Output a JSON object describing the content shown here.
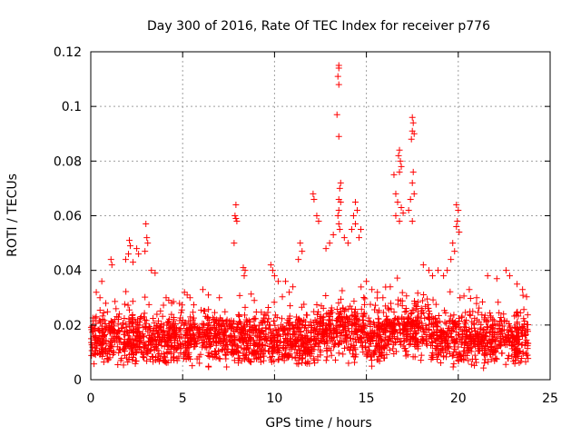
{
  "chart_data": {
    "type": "scatter",
    "title": "Day 300 of 2016, Rate Of TEC Index for receiver p776",
    "xlabel": "GPS time / hours",
    "ylabel": "ROTI / TECUs",
    "xlim": [
      0,
      25
    ],
    "ylim": [
      0,
      0.12
    ],
    "xticks": [
      0,
      5,
      10,
      15,
      20,
      25
    ],
    "yticks": [
      0,
      0.02,
      0.04,
      0.06,
      0.08,
      0.1,
      0.12
    ],
    "xtick_labels": [
      "0",
      "5",
      "10",
      "15",
      "20",
      "25"
    ],
    "ytick_labels": [
      "0",
      "0.02",
      "0.04",
      "0.06",
      "0.08",
      "0.1",
      "0.12"
    ],
    "grid": true,
    "marker": "+",
    "color": "#ff0000",
    "series": [
      {
        "name": "ROTI",
        "points": [
          [
            13.5,
            0.115
          ],
          [
            13.5,
            0.114
          ],
          [
            13.45,
            0.111
          ],
          [
            13.5,
            0.108
          ],
          [
            13.4,
            0.097
          ],
          [
            13.5,
            0.089
          ],
          [
            17.5,
            0.096
          ],
          [
            17.55,
            0.094
          ],
          [
            17.5,
            0.091
          ],
          [
            17.6,
            0.09
          ],
          [
            17.45,
            0.088
          ],
          [
            16.8,
            0.084
          ],
          [
            16.75,
            0.082
          ],
          [
            16.85,
            0.08
          ],
          [
            16.9,
            0.078
          ],
          [
            16.8,
            0.076
          ],
          [
            16.5,
            0.075
          ],
          [
            17.55,
            0.076
          ],
          [
            17.5,
            0.072
          ],
          [
            17.6,
            0.068
          ],
          [
            17.4,
            0.066
          ],
          [
            16.6,
            0.068
          ],
          [
            16.7,
            0.065
          ],
          [
            16.9,
            0.063
          ],
          [
            17.0,
            0.061
          ],
          [
            16.6,
            0.06
          ],
          [
            16.8,
            0.058
          ],
          [
            17.3,
            0.062
          ],
          [
            17.5,
            0.058
          ],
          [
            13.6,
            0.072
          ],
          [
            13.55,
            0.07
          ],
          [
            13.5,
            0.066
          ],
          [
            13.6,
            0.065
          ],
          [
            13.5,
            0.062
          ],
          [
            13.45,
            0.06
          ],
          [
            13.5,
            0.057
          ],
          [
            13.55,
            0.055
          ],
          [
            14.4,
            0.065
          ],
          [
            14.5,
            0.062
          ],
          [
            14.3,
            0.06
          ],
          [
            14.4,
            0.057
          ],
          [
            14.2,
            0.055
          ],
          [
            14.7,
            0.055
          ],
          [
            14.6,
            0.052
          ],
          [
            13.2,
            0.053
          ],
          [
            13.0,
            0.05
          ],
          [
            12.8,
            0.048
          ],
          [
            13.8,
            0.052
          ],
          [
            14.0,
            0.05
          ],
          [
            12.1,
            0.068
          ],
          [
            12.15,
            0.066
          ],
          [
            12.3,
            0.06
          ],
          [
            12.4,
            0.058
          ],
          [
            11.4,
            0.05
          ],
          [
            11.5,
            0.047
          ],
          [
            11.3,
            0.044
          ],
          [
            7.9,
            0.064
          ],
          [
            7.85,
            0.06
          ],
          [
            7.9,
            0.059
          ],
          [
            7.95,
            0.058
          ],
          [
            7.8,
            0.05
          ],
          [
            8.3,
            0.041
          ],
          [
            8.4,
            0.04
          ],
          [
            8.35,
            0.038
          ],
          [
            19.9,
            0.064
          ],
          [
            20.0,
            0.062
          ],
          [
            19.95,
            0.058
          ],
          [
            19.9,
            0.056
          ],
          [
            20.05,
            0.054
          ],
          [
            19.7,
            0.05
          ],
          [
            19.8,
            0.047
          ],
          [
            19.6,
            0.044
          ],
          [
            3.0,
            0.057
          ],
          [
            3.05,
            0.052
          ],
          [
            3.1,
            0.05
          ],
          [
            2.95,
            0.047
          ],
          [
            2.1,
            0.051
          ],
          [
            2.15,
            0.049
          ],
          [
            2.05,
            0.046
          ],
          [
            1.9,
            0.044
          ],
          [
            2.5,
            0.048
          ],
          [
            2.6,
            0.046
          ],
          [
            2.3,
            0.043
          ],
          [
            3.3,
            0.04
          ],
          [
            3.5,
            0.039
          ],
          [
            1.1,
            0.044
          ],
          [
            1.15,
            0.042
          ],
          [
            0.6,
            0.036
          ],
          [
            0.3,
            0.032
          ],
          [
            0.5,
            0.03
          ],
          [
            9.8,
            0.042
          ],
          [
            9.9,
            0.04
          ],
          [
            10.0,
            0.038
          ],
          [
            10.2,
            0.036
          ],
          [
            10.6,
            0.036
          ],
          [
            11.0,
            0.034
          ],
          [
            10.8,
            0.032
          ],
          [
            18.1,
            0.042
          ],
          [
            18.4,
            0.04
          ],
          [
            18.6,
            0.038
          ],
          [
            18.9,
            0.04
          ],
          [
            19.2,
            0.038
          ],
          [
            19.4,
            0.04
          ],
          [
            21.6,
            0.038
          ],
          [
            22.1,
            0.037
          ],
          [
            22.6,
            0.04
          ],
          [
            22.8,
            0.038
          ],
          [
            23.2,
            0.035
          ],
          [
            23.5,
            0.033
          ],
          [
            5.1,
            0.032
          ],
          [
            5.4,
            0.03
          ],
          [
            6.1,
            0.033
          ],
          [
            6.4,
            0.031
          ],
          [
            4.1,
            0.03
          ],
          [
            4.4,
            0.028
          ],
          [
            7.0,
            0.03
          ],
          [
            8.9,
            0.029
          ],
          [
            15.0,
            0.036
          ],
          [
            15.3,
            0.033
          ],
          [
            15.6,
            0.032
          ],
          [
            15.9,
            0.03
          ],
          [
            16.3,
            0.034
          ],
          [
            20.6,
            0.033
          ],
          [
            21.0,
            0.03
          ]
        ]
      }
    ]
  }
}
